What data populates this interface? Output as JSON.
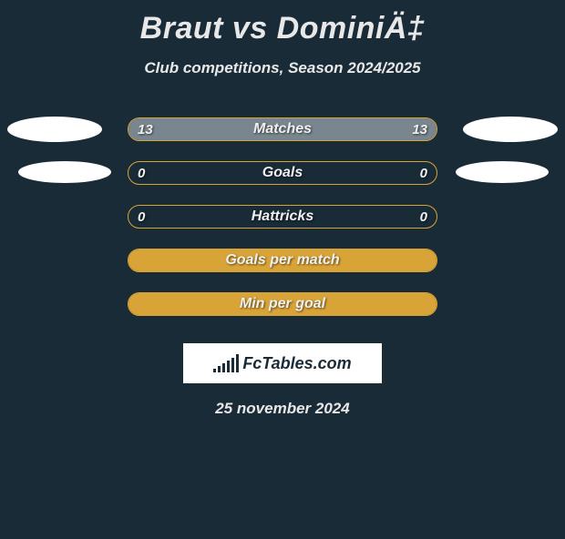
{
  "title": "Braut vs DominiÄ‡",
  "subtitle": "Club competitions, Season 2024/2025",
  "colors": {
    "background": "#1a2b38",
    "text": "#e8e8e8",
    "bar_border": "#d9a437",
    "fill_gray": "#7a868f",
    "fill_yellow": "#d9a437",
    "blob": "#ffffff"
  },
  "rows": [
    {
      "label": "Matches",
      "left_value": "13",
      "right_value": "13",
      "left_fill_pct": 50,
      "right_fill_pct": 50,
      "left_fill_color": "#7a868f",
      "right_fill_color": "#7a868f",
      "show_blob_left": true,
      "show_blob_right": true,
      "blob_style": 1
    },
    {
      "label": "Goals",
      "left_value": "0",
      "right_value": "0",
      "left_fill_pct": 0,
      "right_fill_pct": 0,
      "left_fill_color": "#7a868f",
      "right_fill_color": "#7a868f",
      "show_blob_left": true,
      "show_blob_right": true,
      "blob_style": 2
    },
    {
      "label": "Hattricks",
      "left_value": "0",
      "right_value": "0",
      "left_fill_pct": 0,
      "right_fill_pct": 0,
      "left_fill_color": "#7a868f",
      "right_fill_color": "#7a868f",
      "show_blob_left": false,
      "show_blob_right": false,
      "blob_style": 0
    },
    {
      "label": "Goals per match",
      "left_value": "",
      "right_value": "",
      "left_fill_pct": 0,
      "right_fill_pct": 100,
      "left_fill_color": "#d9a437",
      "right_fill_color": "#d9a437",
      "show_blob_left": false,
      "show_blob_right": false,
      "blob_style": 0
    },
    {
      "label": "Min per goal",
      "left_value": "",
      "right_value": "",
      "left_fill_pct": 0,
      "right_fill_pct": 100,
      "left_fill_color": "#d9a437",
      "right_fill_color": "#d9a437",
      "show_blob_left": false,
      "show_blob_right": false,
      "blob_style": 0
    }
  ],
  "logo": {
    "text": "FcTables.com",
    "bar_heights": [
      4,
      7,
      10,
      13,
      16,
      20
    ]
  },
  "date": "25 november 2024"
}
